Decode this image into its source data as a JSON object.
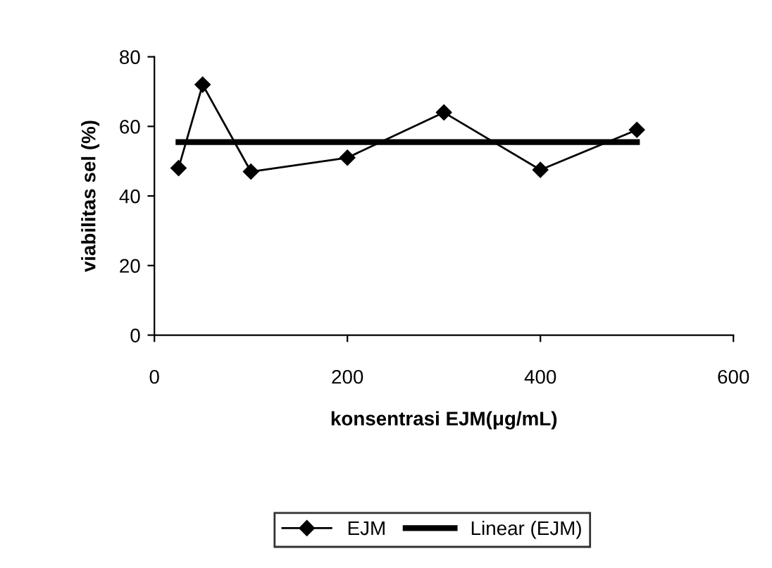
{
  "chart_data": {
    "type": "line",
    "xlabel": "konsentrasi EJM(μg/mL)",
    "ylabel": "viabilitas sel (%)",
    "xlim": [
      0,
      600
    ],
    "xticks": [
      0,
      200,
      400,
      600
    ],
    "ylim": [
      0,
      80
    ],
    "yticks": [
      0,
      20,
      40,
      60,
      80
    ],
    "grid": false,
    "legend": "bottom",
    "series": [
      {
        "name": "EJM",
        "color": "#000000",
        "marker": "diamond",
        "x": [
          25,
          50,
          100,
          200,
          300,
          400,
          500
        ],
        "values": [
          48,
          72,
          47,
          51,
          64,
          47.5,
          59
        ]
      },
      {
        "name": "Linear (EJM)",
        "color": "#000000",
        "marker": "none",
        "x": [
          25,
          500
        ],
        "values": [
          55.5,
          55.5
        ]
      }
    ]
  }
}
